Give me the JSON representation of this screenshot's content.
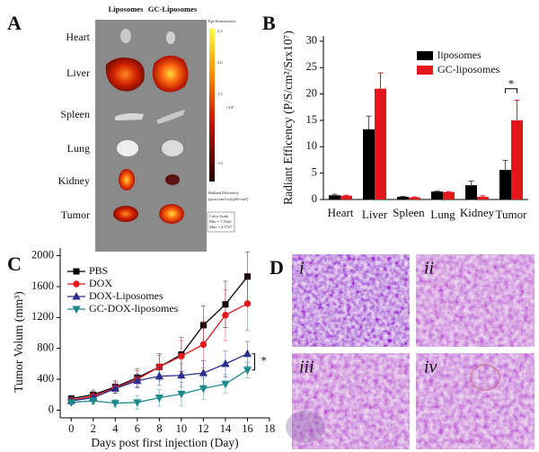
{
  "panel_a": {
    "title": "A",
    "columns": [
      "Liposomes",
      "GC-Liposomes"
    ],
    "rows": [
      "Heart",
      "Liver",
      "Spleen",
      "Lung",
      "Kidney",
      "Tumor"
    ],
    "colorbar": {
      "title": "Epi-fluorescence",
      "ticks": [
        "2.5",
        "2.0",
        "1.5",
        "1.0"
      ],
      "scale": "×10⁷",
      "unit_title": "Radiant Efficiency",
      "unit": "(p/sec/cm²/sr)/(μW/cm²)",
      "legend": [
        "Color Scale",
        "Min = 7.55e6",
        "Max = 2.57e7"
      ]
    }
  },
  "chart_data": [
    {
      "type": "bar",
      "title": "B",
      "ylabel": "Radiant Efficency (P/S/cm²/Srx10⁷)",
      "categories": [
        "Heart",
        "Liver",
        "Spleen",
        "Lung",
        "Kidney",
        "Tumor"
      ],
      "series": [
        {
          "name": "liposomes",
          "color": "#000000",
          "values": [
            0.8,
            13.3,
            0.5,
            1.5,
            2.7,
            5.6
          ],
          "errors": [
            0.2,
            2.5,
            0.1,
            0.1,
            0.8,
            1.8
          ]
        },
        {
          "name": "GC-liposomes",
          "color": "#e3161c",
          "values": [
            0.7,
            21,
            0.4,
            1.4,
            0.5,
            15
          ],
          "errors": [
            0.1,
            3,
            0.1,
            0.1,
            0.2,
            3.8
          ]
        }
      ],
      "ylim": [
        0,
        31
      ],
      "yticks": [
        0,
        5,
        10,
        15,
        20,
        25,
        30
      ],
      "annotation": "*"
    },
    {
      "type": "line",
      "title": "C",
      "xlabel": "Days post first injection (Day)",
      "ylabel": "Tumor Volum (mm³)",
      "x": [
        0,
        2,
        4,
        6,
        8,
        10,
        12,
        14,
        16
      ],
      "series": [
        {
          "name": "PBS",
          "color": "#000000",
          "marker": "square",
          "values": [
            150,
            200,
            300,
            420,
            560,
            720,
            1100,
            1370,
            1730
          ],
          "errors": [
            30,
            60,
            80,
            120,
            170,
            220,
            250,
            300,
            320
          ]
        },
        {
          "name": "DOX",
          "color": "#e3161c",
          "marker": "circle",
          "values": [
            130,
            180,
            290,
            400,
            560,
            700,
            850,
            1230,
            1380
          ],
          "errors": [
            30,
            50,
            70,
            110,
            150,
            200,
            300,
            330,
            350
          ]
        },
        {
          "name": "DOX-Liposomes",
          "color": "#2a2f8f",
          "marker": "triangle",
          "values": [
            120,
            160,
            280,
            380,
            440,
            450,
            480,
            600,
            730
          ],
          "errors": [
            30,
            40,
            60,
            90,
            120,
            150,
            160,
            170,
            160
          ]
        },
        {
          "name": "GC-DOX-liposomes",
          "color": "#1d8a8a",
          "marker": "triangle-down",
          "values": [
            100,
            120,
            90,
            100,
            160,
            210,
            280,
            340,
            520
          ],
          "errors": [
            30,
            40,
            50,
            90,
            110,
            150,
            140,
            120,
            100
          ]
        }
      ],
      "xlim": [
        -1,
        18
      ],
      "xticks": [
        0,
        2,
        4,
        6,
        8,
        10,
        12,
        14,
        16,
        18
      ],
      "ylim": [
        -100,
        2100
      ],
      "yticks": [
        0,
        400,
        800,
        1200,
        1600,
        2000
      ],
      "annotation": "*"
    }
  ],
  "panel_d": {
    "title": "D",
    "labels": [
      "i",
      "ii",
      "iii",
      "iv"
    ]
  }
}
